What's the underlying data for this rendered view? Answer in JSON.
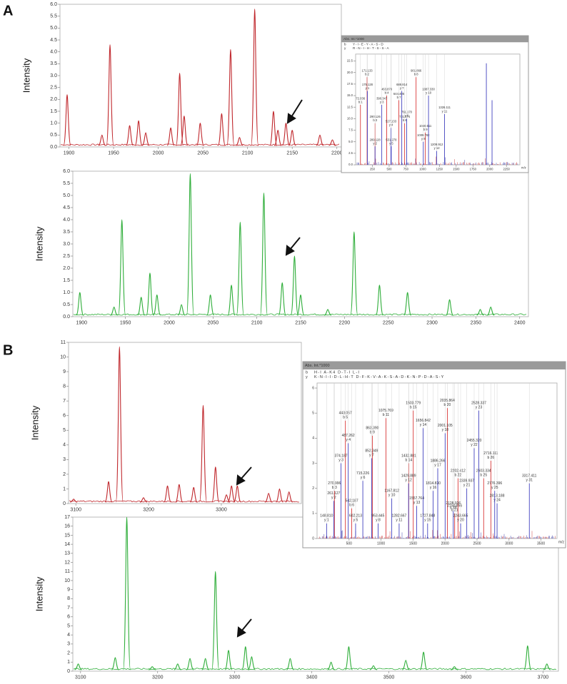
{
  "panel_labels": [
    "A",
    "B"
  ],
  "chart_data": [
    {
      "type": "spectrum",
      "ylabel": "Intensity",
      "color": "#c0282d",
      "x": [
        1898,
        1937,
        1946,
        1968,
        1978,
        1986,
        2014,
        2024,
        2029,
        2047,
        2071,
        2081,
        2091,
        2108,
        2129,
        2134,
        2143,
        2150,
        2181,
        2195
      ],
      "values": [
        2.2,
        0.5,
        4.3,
        0.9,
        1.1,
        0.6,
        0.8,
        3.1,
        1.3,
        1.0,
        1.4,
        4.1,
        0.4,
        5.8,
        1.5,
        0.7,
        1.0,
        0.7,
        0.5,
        0.3
      ],
      "xlim": [
        1890,
        2205
      ],
      "xticks": [
        1900,
        1950,
        2000,
        2050,
        2100,
        2150,
        2200
      ],
      "ylim": [
        0,
        6
      ],
      "yticks": [
        {
          "value": 0,
          "label": "0.0"
        },
        0.5,
        {
          "value": 1,
          "label": "1.0"
        },
        1.5,
        {
          "value": 2,
          "label": "2.0"
        },
        2.5,
        {
          "value": 3,
          "label": "3.0"
        },
        3.5,
        {
          "value": 4,
          "label": "4.0"
        },
        4.5,
        {
          "value": 5,
          "label": "5.0"
        },
        5.5,
        {
          "value": 6,
          "label": "6.0"
        }
      ]
    },
    {
      "type": "spectrum",
      "ylabel": "Intensity",
      "color": "#2fae3a",
      "x": [
        1898,
        1937,
        1946,
        1968,
        1978,
        1986,
        2014,
        2024,
        2047,
        2071,
        2081,
        2108,
        2129,
        2143,
        2150,
        2181,
        2211,
        2240,
        2272,
        2320,
        2355,
        2367
      ],
      "values": [
        1.0,
        0.4,
        4.0,
        0.8,
        1.8,
        0.9,
        0.5,
        5.9,
        0.9,
        1.3,
        3.9,
        5.1,
        1.4,
        2.5,
        0.9,
        0.3,
        3.5,
        1.3,
        1.0,
        0.7,
        0.3,
        0.4
      ],
      "xlim": [
        1890,
        2410
      ],
      "xticks": [
        1900,
        1950,
        2000,
        2050,
        2100,
        2150,
        2200,
        2250,
        2300,
        2350,
        2400
      ],
      "ylim": [
        0,
        6
      ],
      "yticks": [
        {
          "value": 0,
          "label": "0.0"
        },
        0.5,
        {
          "value": 1,
          "label": "1.0"
        },
        1.5,
        {
          "value": 2,
          "label": "2.0"
        },
        2.5,
        {
          "value": 3,
          "label": "3.0"
        },
        3.5,
        {
          "value": 4,
          "label": "4.0"
        },
        4.5,
        {
          "value": 5,
          "label": "5.0"
        },
        5.5,
        {
          "value": 6,
          "label": "6.0"
        }
      ]
    },
    {
      "type": "stick",
      "title": "Abs. Int.*1000",
      "xlabel": "m/z",
      "series": [
        {
          "name": "b",
          "color": "#d42020",
          "sequence": "Y-I-E-Y-A-S-D",
          "x": [
            72.036,
            171.133,
            290.126,
            463.878,
            644.405,
            731.474,
            901.866,
            1040.511
          ],
          "values": [
            13,
            19,
            9,
            15,
            14,
            9,
            19,
            7
          ],
          "labels": [
            "72.036",
            "171.133",
            "290.126",
            "463.878",
            "644.405",
            "731.474",
            "901.866",
            "1040.511"
          ],
          "ions": [
            "b 1",
            "b 2",
            "b 3",
            "b 4",
            "b 7",
            "b 8",
            "b 8",
            "b 9"
          ]
        },
        {
          "name": "y",
          "color": "#2b2bb8",
          "sequence": "R-N-I-H-T-S-S-A",
          "x": [
            175.128,
            289.128,
            390.347,
            527.133,
            531.278,
            761.17,
            688.814,
            1009.782,
            1087.33,
            1209.912,
            1326.111,
            1950,
            2035
          ],
          "values": [
            16,
            4,
            13,
            8,
            4,
            10,
            16,
            5,
            15,
            3,
            11,
            22,
            14
          ],
          "labels": [
            "175.128",
            "289.128",
            "390.347",
            "527.133",
            "531.278",
            "761.170",
            "688.814",
            "1009.782",
            "1087.330",
            "1209.912",
            "1326.111",
            null,
            null
          ],
          "ions": [
            "y 1",
            "y 2",
            "y 3",
            "y 4",
            "y 5",
            "y 6",
            "y 7",
            "y 8",
            "y 10",
            "y 12",
            "y 11",
            null,
            null
          ]
        }
      ],
      "xlim": [
        0,
        2450
      ],
      "xticks": [
        250,
        500,
        750,
        1000,
        1250,
        1500,
        1750,
        2000,
        2250
      ],
      "ylim": [
        0,
        24
      ],
      "yticks": [
        {
          "value": 0,
          "label": "0.0"
        },
        2.5,
        {
          "value": 5,
          "label": "5.0"
        },
        7.5,
        {
          "value": 10,
          "label": "10.0"
        },
        12.5,
        {
          "value": 15,
          "label": "15.0"
        },
        17.5,
        {
          "value": 20,
          "label": "20.0"
        },
        22.5
      ]
    },
    {
      "type": "spectrum",
      "ylabel": "Intensity",
      "color": "#c0282d",
      "x": [
        3097,
        3145,
        3160,
        3193,
        3226,
        3242,
        3262,
        3275,
        3292,
        3307,
        3314,
        3322,
        3365,
        3380,
        3393
      ],
      "values": [
        0.3,
        1.5,
        10.7,
        0.4,
        1.2,
        1.3,
        1.1,
        6.7,
        2.5,
        0.6,
        1.2,
        1.2,
        0.7,
        1.0,
        0.8
      ],
      "xlim": [
        3090,
        3410
      ],
      "xticks": [
        3100,
        3200,
        3300
      ],
      "ylim": [
        0,
        11
      ],
      "yticks": [
        0,
        1,
        2,
        3,
        4,
        5,
        6,
        7,
        8,
        9,
        10,
        11
      ]
    },
    {
      "type": "spectrum",
      "ylabel": "Intensity",
      "color": "#2fae3a",
      "x": [
        3097,
        3145,
        3160,
        3193,
        3226,
        3242,
        3262,
        3275,
        3292,
        3314,
        3322,
        3372,
        3425,
        3448,
        3480,
        3522,
        3545,
        3585,
        3680,
        3705
      ],
      "values": [
        0.8,
        1.5,
        17.0,
        0.5,
        0.8,
        1.4,
        1.4,
        11.0,
        2.3,
        2.7,
        1.6,
        1.4,
        1.0,
        2.7,
        0.6,
        1.2,
        2.1,
        0.5,
        2.8,
        0.8
      ],
      "xlim": [
        3090,
        3720
      ],
      "xticks": [
        3100,
        3200,
        3300,
        3400,
        3500,
        3600,
        3700
      ],
      "ylim": [
        0,
        17
      ],
      "yticks": [
        0,
        1,
        2,
        3,
        4,
        5,
        6,
        7,
        8,
        9,
        10,
        11,
        12,
        13,
        14,
        15,
        16,
        17
      ]
    },
    {
      "type": "stick",
      "title": "Abs. Int.*1000",
      "xlabel": "m/z",
      "series": [
        {
          "name": "b",
          "color": "#d42020",
          "sequence": "H-I   A-K4   D-T-I   L-I",
          "x": [
            270.996,
            443.057,
            542.187,
            863.39,
            1075.769,
            1432.881,
            1503.779,
            2035.864,
            2150.856,
            2202.412,
            2603.334,
            2716.111
          ],
          "values": [
            1.9,
            4.7,
            1.2,
            4.1,
            4.8,
            3.0,
            5.1,
            5.2,
            1.0,
            2.4,
            2.4,
            3.1
          ],
          "labels": [
            "270.996",
            "443.057",
            "542.187",
            "863.390",
            "1075.769",
            "1432.881",
            "1503.779",
            "2035.864",
            "2150.856",
            "2202.412",
            "2603.334",
            "2716.111"
          ],
          "ions": [
            "b 3",
            "b 5",
            "b 6",
            "b 9",
            "b 11",
            "b 14",
            "b 15",
            "b 20",
            "b 21",
            "b 22",
            "b 25",
            "b 26"
          ]
        },
        {
          "name": "y",
          "color": "#2b2bb8",
          "sequence": "K-N-I-I-D-L-H-T   D-F-K-V-A-K-S-A-D-K-N-P-D-A-S-Y",
          "x": [
            148.81,
            261.127,
            374.187,
            487.262,
            602.213,
            715.226,
            852.349,
            953.445,
            1167.812,
            1282.667,
            1429.889,
            1557.764,
            1656.842,
            1727.848,
            1814.83,
            1886.266,
            2001.105,
            2128.926,
            2243.665,
            2339.937,
            2455.32,
            2528.337,
            2813.188,
            2776.396,
            3317.411
          ],
          "values": [
            0.6,
            1.5,
            3.0,
            3.8,
            0.6,
            2.3,
            3.2,
            0.6,
            1.6,
            0.6,
            2.2,
            1.3,
            4.4,
            0.6,
            1.9,
            2.8,
            4.2,
            1.1,
            0.6,
            2.0,
            3.6,
            5.1,
            1.4,
            1.9,
            2.2
          ],
          "labels": [
            "148.810",
            "261.127",
            "374.187",
            "487.262",
            "602.213",
            "715.226",
            "852.349",
            "953.445",
            "1167.812",
            "1282.667",
            "1429.889",
            "1557.764",
            "1656.842",
            "1727.848",
            "1814.830",
            "1886.266",
            "2001.105",
            "2128.926",
            "2243.665",
            "2339.937",
            "2455.320",
            "2528.337",
            "2813.188",
            "2776.396",
            "3317.411"
          ],
          "ions": [
            "y 1",
            "y 2",
            "y 3",
            "y 4",
            "y 5",
            "y 6",
            "y 7",
            "y 8",
            "y 10",
            "y 11",
            "y 12",
            "y 13",
            "y 14",
            "y 15",
            "y 16",
            "y 17",
            "y 18",
            "y 19",
            "y 20",
            "y 21",
            "y 22",
            "y 23",
            "y 24",
            "y 25",
            "y 31"
          ]
        }
      ],
      "xlim": [
        0,
        3750
      ],
      "xticks": [
        500,
        1000,
        1500,
        2000,
        2500,
        3000,
        3500
      ],
      "ylim": [
        0,
        6.2
      ],
      "yticks": [
        0,
        1,
        2,
        3,
        4,
        5,
        6
      ]
    }
  ]
}
